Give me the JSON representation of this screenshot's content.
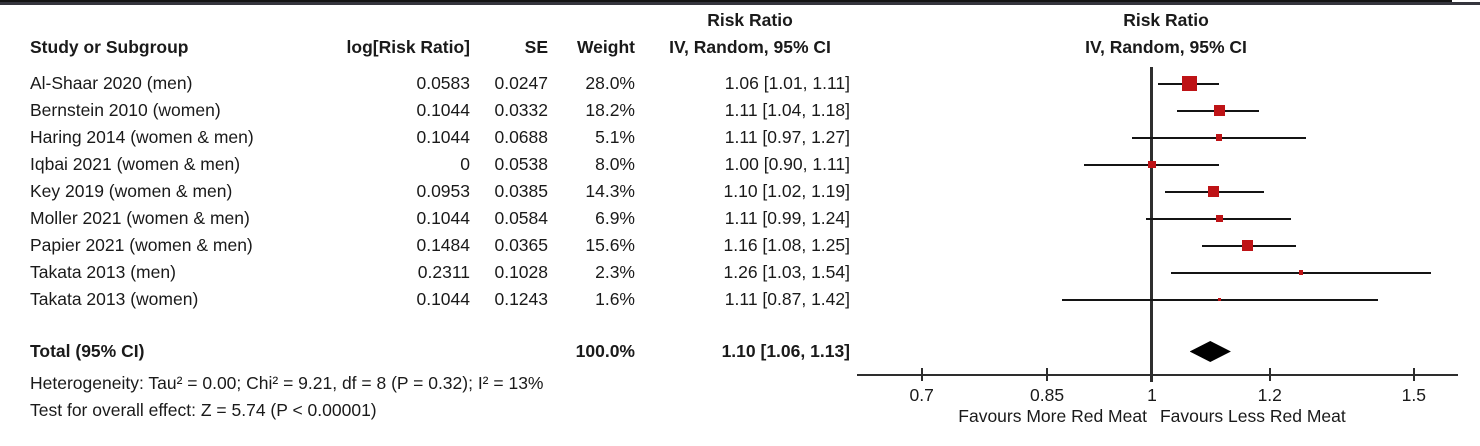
{
  "header": {
    "study_col": "Study or Subgroup",
    "log_rr_col": "log[Risk Ratio]",
    "se_col": "SE",
    "weight_col": "Weight",
    "ci_col_title": "Risk Ratio",
    "ci_col_sub": "IV, Random, 95% CI",
    "plot_col_title": "Risk Ratio",
    "plot_col_sub": "IV, Random, 95% CI"
  },
  "footnotes": {
    "heterogeneity": "Heterogeneity: Tau² = 0.00; Chi² = 9.21, df = 8 (P = 0.32); I² = 13%",
    "overall_effect": "Test for overall effect: Z = 5.74 (P < 0.00001)"
  },
  "colors": {
    "marker_red": "#be1316",
    "diamond_black": "#000000",
    "line_black": "#141414"
  },
  "chart_data": {
    "type": "forest",
    "effect_measure": "Risk Ratio",
    "model": "IV, Random, 95% CI",
    "x_scale": "log",
    "xlim": [
      0.63,
      1.62
    ],
    "studies": [
      {
        "name": "Al-Shaar 2020 (men)",
        "log_rr": "0.0583",
        "se": "0.0247",
        "weight": "28.0%",
        "weight_pct": 28.0,
        "ci_text": "1.06 [1.01, 1.11]",
        "rr": 1.06,
        "lo": 1.01,
        "hi": 1.11
      },
      {
        "name": "Bernstein 2010 (women)",
        "log_rr": "0.1044",
        "se": "0.0332",
        "weight": "18.2%",
        "weight_pct": 18.2,
        "ci_text": "1.11 [1.04, 1.18]",
        "rr": 1.11,
        "lo": 1.04,
        "hi": 1.18
      },
      {
        "name": "Haring 2014 (women & men)",
        "log_rr": "0.1044",
        "se": "0.0688",
        "weight": "5.1%",
        "weight_pct": 5.1,
        "ci_text": "1.11 [0.97, 1.27]",
        "rr": 1.11,
        "lo": 0.97,
        "hi": 1.27
      },
      {
        "name": "Iqbai 2021 (women & men)",
        "log_rr": "0",
        "se": "0.0538",
        "weight": "8.0%",
        "weight_pct": 8.0,
        "ci_text": "1.00 [0.90, 1.11]",
        "rr": 1.0,
        "lo": 0.9,
        "hi": 1.11
      },
      {
        "name": "Key 2019 (women & men)",
        "log_rr": "0.0953",
        "se": "0.0385",
        "weight": "14.3%",
        "weight_pct": 14.3,
        "ci_text": "1.10 [1.02, 1.19]",
        "rr": 1.1,
        "lo": 1.02,
        "hi": 1.19
      },
      {
        "name": "Moller 2021 (women & men)",
        "log_rr": "0.1044",
        "se": "0.0584",
        "weight": "6.9%",
        "weight_pct": 6.9,
        "ci_text": "1.11 [0.99, 1.24]",
        "rr": 1.11,
        "lo": 0.99,
        "hi": 1.24
      },
      {
        "name": "Papier 2021 (women & men)",
        "log_rr": "0.1484",
        "se": "0.0365",
        "weight": "15.6%",
        "weight_pct": 15.6,
        "ci_text": "1.16 [1.08, 1.25]",
        "rr": 1.16,
        "lo": 1.08,
        "hi": 1.25
      },
      {
        "name": "Takata 2013 (men)",
        "log_rr": "0.2311",
        "se": "0.1028",
        "weight": "2.3%",
        "weight_pct": 2.3,
        "ci_text": "1.26 [1.03, 1.54]",
        "rr": 1.26,
        "lo": 1.03,
        "hi": 1.54
      },
      {
        "name": "Takata 2013 (women)",
        "log_rr": "0.1044",
        "se": "0.1243",
        "weight": "1.6%",
        "weight_pct": 1.6,
        "ci_text": "1.11 [0.87, 1.42]",
        "rr": 1.11,
        "lo": 0.87,
        "hi": 1.42
      }
    ],
    "total": {
      "label": "Total (95% CI)",
      "weight": "100.0%",
      "ci_text": "1.10 [1.06, 1.13]",
      "rr": 1.1,
      "lo": 1.06,
      "hi": 1.13
    },
    "heterogeneity": {
      "tau2": "0.00",
      "chi2": "9.21",
      "df": "8",
      "p": "0.32",
      "i2": "13%"
    },
    "overall_effect": {
      "z": "5.74",
      "p": "< 0.00001"
    },
    "axis": {
      "ticks": [
        {
          "v": 0.7,
          "label": "0.7"
        },
        {
          "v": 0.85,
          "label": "0.85"
        },
        {
          "v": 1,
          "label": "1"
        },
        {
          "v": 1.2,
          "label": "1.2"
        },
        {
          "v": 1.5,
          "label": "1.5"
        }
      ],
      "favours_left": "Favours More Red Meat",
      "favours_right": "Favours Less Red Meat"
    }
  }
}
